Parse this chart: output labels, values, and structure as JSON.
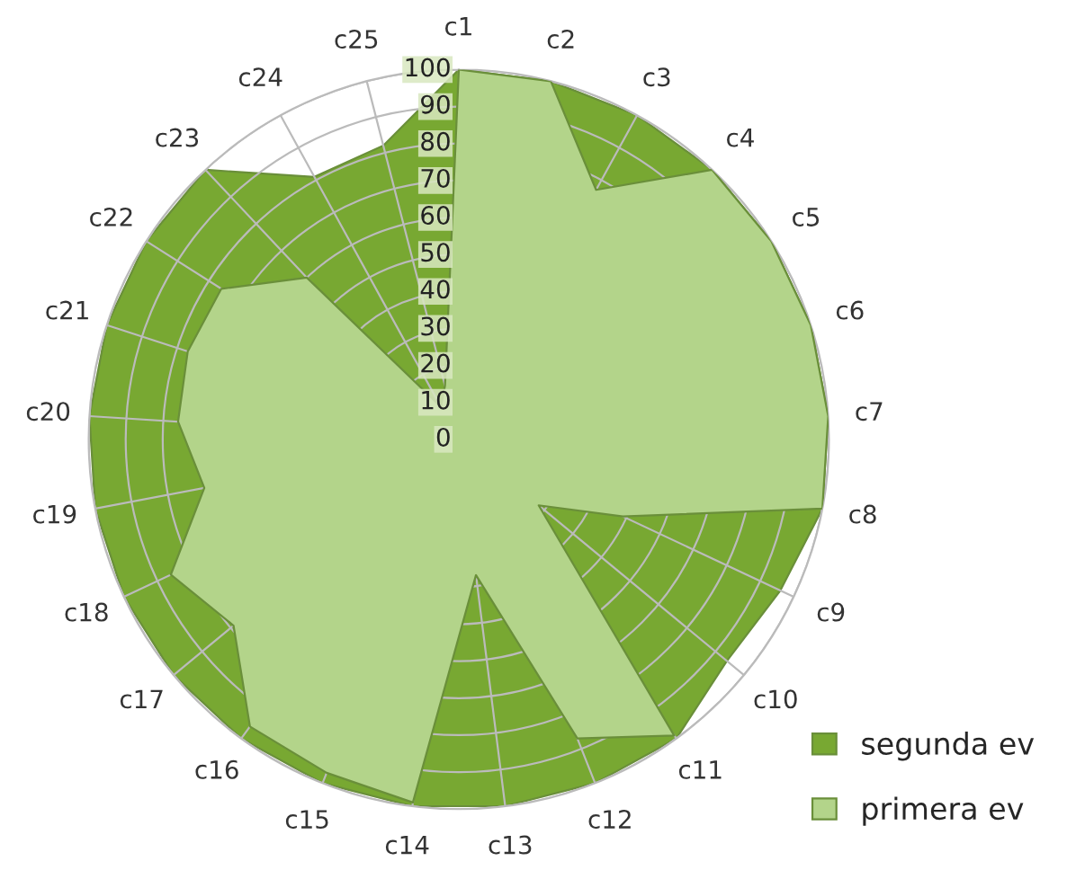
{
  "chart_data": {
    "type": "radar",
    "categories": [
      "c1",
      "c2",
      "c3",
      "c4",
      "c5",
      "c6",
      "c7",
      "c8",
      "c9",
      "c10",
      "c11",
      "c12",
      "c13",
      "c14",
      "c15",
      "c16",
      "c17",
      "c18",
      "c19",
      "c20",
      "c21",
      "c22",
      "c23",
      "c24",
      "c25"
    ],
    "series": [
      {
        "name": "segunda ev",
        "color": "#78a832",
        "values": [
          100,
          100,
          100,
          100,
          100,
          100,
          100,
          100,
          96,
          94,
          100,
          100,
          100,
          100,
          100,
          100,
          100,
          100,
          100,
          100,
          100,
          100,
          100,
          81,
          82
        ]
      },
      {
        "name": "primera ev",
        "color": "#b3d48a",
        "values": [
          100,
          100,
          77,
          100,
          100,
          100,
          100,
          100,
          49,
          28,
          99,
          87,
          37,
          99,
          97,
          96,
          79,
          86,
          70,
          76,
          77,
          76,
          60,
          10,
          15
        ]
      }
    ],
    "ylim": [
      0,
      100
    ],
    "yticks": [
      0,
      10,
      20,
      30,
      40,
      50,
      60,
      70,
      80,
      90,
      100
    ],
    "grid": true,
    "legend": "bottom right"
  }
}
